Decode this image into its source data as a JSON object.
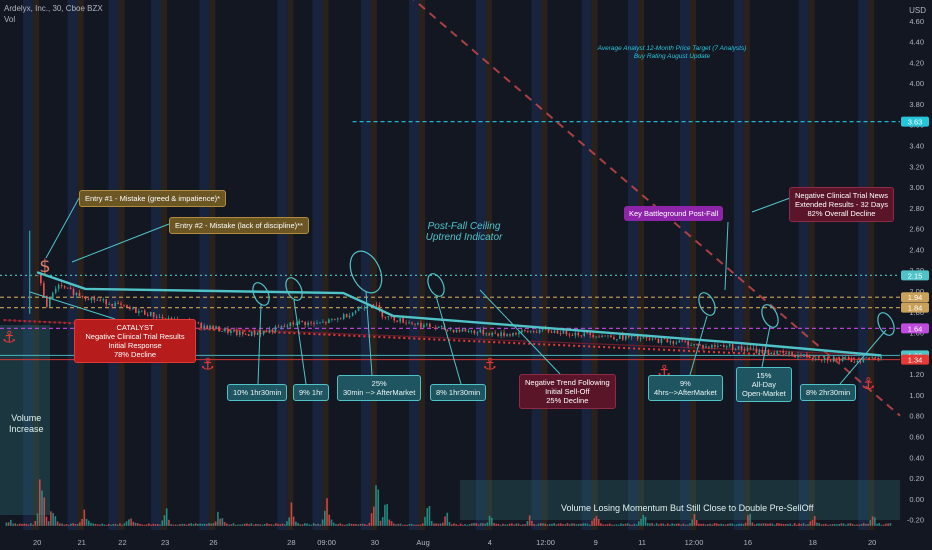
{
  "header": {
    "symbol_line": "Ardelyx, Inc., 30, Cboe BZX",
    "vol_label": "Vol",
    "currency": "USD"
  },
  "colors": {
    "background": "#131722",
    "up": "#26a69a",
    "down": "#ef5350",
    "trend_teal": "#4fc3c8",
    "support_red": "#e53935",
    "gold_level": "#c9a15a",
    "purple_level": "#c04be0",
    "pt_line": "#26c6da",
    "session_blue": "#1e2d55",
    "session_orange": "#3d2a14"
  },
  "chart_data": {
    "type": "line",
    "title": "Ardelyx, Inc., 30, Cboe BZX",
    "ylabel": "USD",
    "ylim": [
      -0.3,
      4.8
    ],
    "y_ticks": [
      "4.60",
      "4.40",
      "4.20",
      "4.00",
      "3.80",
      "3.60",
      "3.40",
      "3.20",
      "3.00",
      "2.80",
      "2.60",
      "2.40",
      "2.20",
      "2.00",
      "1.80",
      "1.60",
      "1.40",
      "1.20",
      "1.00",
      "0.80",
      "0.60",
      "0.40",
      "0.20",
      "0.00",
      "-0.20"
    ],
    "x_ticks": [
      "20",
      "21",
      "22",
      "23",
      "26",
      "28",
      "09:00",
      "30",
      "Aug",
      "4",
      "12:00",
      "9",
      "11",
      "12:00",
      "16",
      "18",
      "20"
    ],
    "x_tick_positions": [
      0.0,
      2.4,
      4.6,
      6.9,
      9.5,
      13.7,
      15.6,
      18.2,
      20.8,
      24.4,
      27.4,
      30.1,
      32.6,
      35.4,
      38.3,
      41.8,
      45.0
    ],
    "x_range": [
      -2.0,
      46.5
    ],
    "price_series": {
      "name": "Price",
      "x": [
        0,
        0.5,
        1,
        2,
        3,
        4,
        5,
        6,
        7,
        8,
        9,
        10,
        11,
        12,
        13,
        14,
        15,
        16,
        17,
        18,
        18.5,
        19,
        20,
        21,
        22,
        23,
        24,
        25,
        26,
        27,
        28,
        29,
        30,
        31,
        32,
        33,
        34,
        35,
        36,
        37,
        38,
        39,
        40,
        41,
        42,
        43,
        44,
        45,
        45.5
      ],
      "y": [
        2.15,
        1.85,
        2.05,
        1.98,
        1.92,
        1.88,
        1.82,
        1.78,
        1.72,
        1.7,
        1.66,
        1.62,
        1.58,
        1.6,
        1.64,
        1.7,
        1.68,
        1.72,
        1.8,
        1.9,
        1.78,
        1.74,
        1.7,
        1.66,
        1.63,
        1.62,
        1.6,
        1.58,
        1.6,
        1.62,
        1.61,
        1.59,
        1.58,
        1.56,
        1.55,
        1.53,
        1.52,
        1.5,
        1.46,
        1.48,
        1.44,
        1.42,
        1.4,
        1.38,
        1.36,
        1.34,
        1.33,
        1.36,
        1.38
      ]
    },
    "volume_series": {
      "name": "Vol",
      "peaks": [
        {
          "x": -1.5,
          "v": 0.05
        },
        {
          "x": 0.2,
          "v": 0.55
        },
        {
          "x": 0.8,
          "v": 0.22
        },
        {
          "x": 2.5,
          "v": 0.12
        },
        {
          "x": 5.0,
          "v": 0.1
        },
        {
          "x": 6.9,
          "v": 0.14
        },
        {
          "x": 9.8,
          "v": 0.12
        },
        {
          "x": 13.7,
          "v": 0.18
        },
        {
          "x": 15.6,
          "v": 0.25
        },
        {
          "x": 18.2,
          "v": 0.45
        },
        {
          "x": 18.8,
          "v": 0.2
        },
        {
          "x": 21.0,
          "v": 0.18
        },
        {
          "x": 22.0,
          "v": 0.1
        },
        {
          "x": 24.4,
          "v": 0.09
        },
        {
          "x": 26.5,
          "v": 0.08
        },
        {
          "x": 30.1,
          "v": 0.1
        },
        {
          "x": 32.6,
          "v": 0.09
        },
        {
          "x": 35.4,
          "v": 0.08
        },
        {
          "x": 38.3,
          "v": 0.09
        },
        {
          "x": 41.8,
          "v": 0.07
        },
        {
          "x": 45.0,
          "v": 0.08
        }
      ]
    },
    "levels": [
      {
        "label": "3.63",
        "y": 3.63,
        "color": "#26c6da",
        "style": "dashed"
      },
      {
        "label": "2.15",
        "y": 2.15,
        "color": "#4fc3c8",
        "style": "dotted"
      },
      {
        "label": "1.94",
        "y": 1.94,
        "color": "#c9a15a",
        "style": "dashed"
      },
      {
        "label": "1.84",
        "y": 1.84,
        "color": "#c9a15a",
        "style": "dashed"
      },
      {
        "label": "1.64",
        "y": 1.64,
        "color": "#c04be0",
        "style": "dashed"
      },
      {
        "label": "1.38",
        "y": 1.38,
        "color": "#4fc3c8",
        "style": "solid"
      },
      {
        "label": "1.34",
        "y": 1.34,
        "color": "#e53935",
        "style": "solid"
      }
    ],
    "ceiling_line": {
      "x": [
        0,
        2.6,
        16.5,
        19.2,
        37.8,
        45.5
      ],
      "y": [
        2.18,
        2.02,
        1.98,
        1.76,
        1.5,
        1.38
      ]
    },
    "support_line": {
      "x": [
        -1.8,
        45.5
      ],
      "y": [
        1.72,
        1.34
      ]
    },
    "analyst_target_line": {
      "x": [
        17.0,
        46.5
      ],
      "y": [
        3.63,
        3.63
      ]
    },
    "decline_line": {
      "x": [
        20.0,
        46.5
      ],
      "y": [
        4.85,
        0.8
      ]
    },
    "anchors": [
      {
        "x": -1.5,
        "y": 1.66
      },
      {
        "x": 9.2,
        "y": 1.4
      },
      {
        "x": 24.4,
        "y": 1.4
      },
      {
        "x": 33.8,
        "y": 1.33
      },
      {
        "x": 38.8,
        "y": 1.25
      },
      {
        "x": 44.8,
        "y": 1.21
      }
    ],
    "annotations": {
      "pt_label": "Average Analyst 12-Month Price Target (7 Analysts)",
      "pt_sub": "Buy Rating August Update",
      "ceiling_label": "Post-Fall Ceiling",
      "ceiling_sub": "Uptrend Indicator",
      "entry1": "Entry #1 - Mistake (greed & impatience)*",
      "entry2": "Entry #2 - Mistake (lack of discipline)**",
      "catalyst_title": "CATALYST",
      "catalyst_l1": "Negative Clinical Trial Results",
      "catalyst_l2": "Initial Response",
      "catalyst_l3": "78% Decline",
      "news_l1": "Negative Clinical Trial News",
      "news_l2": "Extended Results - 32 Days",
      "news_l3": "82% Overall Decline",
      "battleground": "Key Battleground Post-Fall",
      "trend_l1": "Negative Trend Following",
      "trend_l2": "Initial Sell-Off",
      "trend_l3": "25% Decline",
      "volume_l1": "Volume",
      "volume_l2": "Increase",
      "momentum": "Volume Losing Momentum But Still Close to Double Pre-SellOff",
      "dip1": "10% 1hr30min",
      "dip2": "9% 1hr",
      "dip3_l1": "25%",
      "dip3_l2": "30min --> AfterMarket",
      "dip4": "8% 1hr30min",
      "dip5_l1": "9%",
      "dip5_l2": "4hrs-->AfterMarket",
      "dip6_l1": "15%",
      "dip6_l2": "All-Day",
      "dip6_l3": "Open-Market",
      "dip7": "8% 2hr30min"
    }
  }
}
